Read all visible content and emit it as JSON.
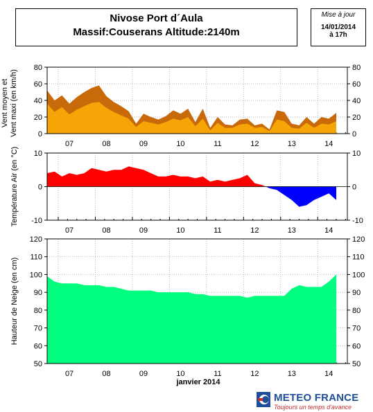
{
  "header": {
    "title_line1": "Nivose Port d´Aula",
    "title_line2": "Massif:Couserans Altitude:2140m",
    "update_label": "Mise à jour",
    "update_date": "14/01/2014",
    "update_time": "à 17h"
  },
  "x_axis": {
    "ticks": [
      "07",
      "08",
      "09",
      "10",
      "11",
      "12",
      "13",
      "14"
    ],
    "title": "janvier 2014",
    "domain": [
      6.7,
      14.8
    ]
  },
  "logo": {
    "name": "METEO FRANCE",
    "tagline": "Toujours un temps d'avance"
  },
  "chart_data": [
    {
      "type": "area",
      "name": "wind",
      "ylabel_lines": [
        "Vent moyen et",
        "Vent maxi (en km/h)"
      ],
      "ylim": [
        0,
        80
      ],
      "yticks": [
        0,
        20,
        40,
        60,
        80
      ],
      "grid": true,
      "x": [
        6.7,
        6.9,
        7.1,
        7.3,
        7.5,
        7.7,
        7.9,
        8.1,
        8.3,
        8.5,
        8.7,
        8.9,
        9.1,
        9.3,
        9.5,
        9.7,
        9.9,
        10.1,
        10.3,
        10.5,
        10.7,
        10.9,
        11.1,
        11.3,
        11.5,
        11.7,
        11.9,
        12.1,
        12.3,
        12.5,
        12.7,
        12.9,
        13.1,
        13.3,
        13.5,
        13.7,
        13.9,
        14.1,
        14.3,
        14.5
      ],
      "series": [
        {
          "name": "max",
          "color": "#c8690a",
          "values": [
            52,
            40,
            46,
            36,
            44,
            50,
            55,
            58,
            45,
            38,
            33,
            27,
            12,
            24,
            20,
            17,
            21,
            28,
            24,
            30,
            14,
            30,
            7,
            20,
            11,
            10,
            17,
            18,
            10,
            12,
            5,
            28,
            26,
            12,
            10,
            20,
            12,
            20,
            18,
            25
          ]
        },
        {
          "name": "moyen",
          "color": "#f6a507",
          "values": [
            36,
            26,
            32,
            23,
            29,
            33,
            37,
            38,
            31,
            26,
            22,
            18,
            8,
            15,
            13,
            11,
            14,
            18,
            16,
            20,
            9,
            18,
            4,
            13,
            7,
            7,
            11,
            12,
            7,
            8,
            3,
            17,
            15,
            7,
            6,
            13,
            7,
            12,
            11,
            15
          ]
        }
      ]
    },
    {
      "type": "area",
      "name": "temperature",
      "ylabel": "Température Air (en °C)",
      "ylim": [
        -10,
        10
      ],
      "yticks": [
        -10,
        0,
        10
      ],
      "grid": true,
      "colors": {
        "positive": "#ff0000",
        "negative": "#0000ff"
      },
      "x": [
        6.7,
        6.9,
        7.1,
        7.3,
        7.5,
        7.7,
        7.9,
        8.1,
        8.3,
        8.5,
        8.7,
        8.9,
        9.1,
        9.3,
        9.5,
        9.7,
        9.9,
        10.1,
        10.3,
        10.5,
        10.7,
        10.9,
        11.1,
        11.3,
        11.5,
        11.7,
        11.9,
        12.1,
        12.3,
        12.5,
        12.7,
        12.9,
        13.1,
        13.3,
        13.5,
        13.7,
        13.9,
        14.1,
        14.3,
        14.5
      ],
      "values": [
        4,
        4.5,
        3,
        4,
        3.5,
        4,
        5.5,
        5,
        4.5,
        5,
        5,
        6,
        5.5,
        5,
        4,
        3,
        3,
        3.5,
        3,
        3,
        2.5,
        3,
        1.5,
        2,
        1.5,
        2,
        2.5,
        3.5,
        1,
        0.5,
        -0.5,
        -1,
        -2.5,
        -4,
        -6,
        -5.5,
        -4,
        -3,
        -2,
        -4
      ]
    },
    {
      "type": "area",
      "name": "snow",
      "ylabel": "Hauteur de Neige (en cm)",
      "ylim": [
        50,
        120
      ],
      "yticks": [
        50,
        60,
        70,
        80,
        90,
        100,
        110,
        120
      ],
      "grid": true,
      "color": "#00ff7f",
      "x": [
        6.7,
        6.9,
        7.1,
        7.3,
        7.5,
        7.7,
        7.9,
        8.1,
        8.3,
        8.5,
        8.7,
        8.9,
        9.1,
        9.3,
        9.5,
        9.7,
        9.9,
        10.1,
        10.3,
        10.5,
        10.7,
        10.9,
        11.1,
        11.3,
        11.5,
        11.7,
        11.9,
        12.1,
        12.3,
        12.5,
        12.7,
        12.9,
        13.1,
        13.3,
        13.5,
        13.7,
        13.9,
        14.1,
        14.3,
        14.5
      ],
      "values": [
        99,
        96,
        95,
        95,
        95,
        94,
        94,
        94,
        93,
        93,
        92,
        91,
        91,
        91,
        91,
        90,
        90,
        90,
        90,
        90,
        89,
        89,
        88,
        88,
        88,
        88,
        88,
        87,
        88,
        88,
        88,
        88,
        88,
        92,
        94,
        93,
        93,
        93,
        96,
        100
      ]
    }
  ]
}
